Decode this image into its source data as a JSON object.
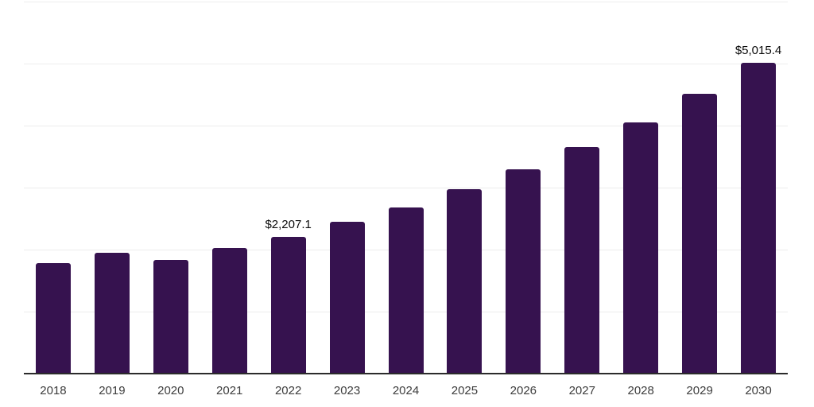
{
  "chart_data": {
    "type": "bar",
    "title": "",
    "xlabel": "",
    "ylabel": "",
    "categories": [
      "2018",
      "2019",
      "2020",
      "2021",
      "2022",
      "2023",
      "2024",
      "2025",
      "2026",
      "2027",
      "2028",
      "2029",
      "2030"
    ],
    "values": [
      1780,
      1950,
      1835,
      2025,
      2207.1,
      2450,
      2680,
      2975,
      3295,
      3655,
      4050,
      4510,
      5015.4
    ],
    "data_labels": [
      "",
      "",
      "",
      "",
      "$2,207.1",
      "",
      "",
      "",
      "",
      "",
      "",
      "",
      "$5,015.4"
    ],
    "ylim": [
      0,
      6000
    ],
    "gridline_step": 1000,
    "grid": true,
    "legend": false,
    "y_axis_tick_labels_visible": false,
    "colors": {
      "bar": "#36124F",
      "gridline": "#ededed",
      "axis_line": "#2b2b2b",
      "tick_label": "#3d3d3d",
      "data_label": "#0a0a0a",
      "background": "#ffffff"
    }
  }
}
